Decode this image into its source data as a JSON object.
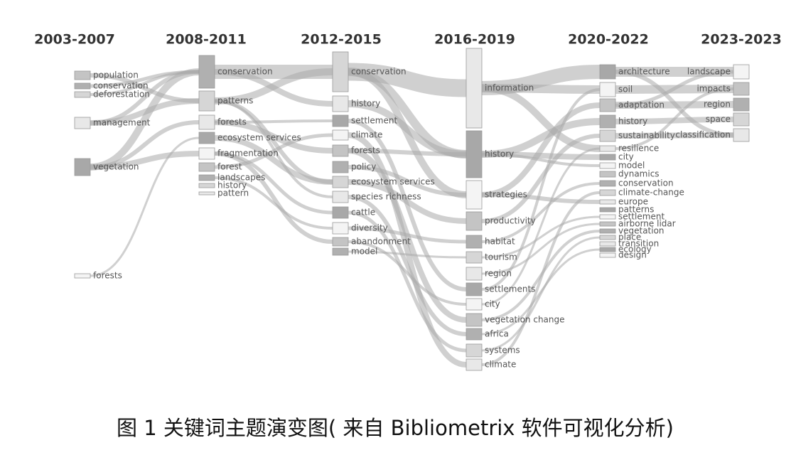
{
  "periods": [
    {
      "label": "2003-2007",
      "nodes": [
        "population",
        "conservation",
        "deforestation",
        "management",
        "vegetation",
        "forests"
      ]
    },
    {
      "label": "2008-2011",
      "nodes": [
        "conservation",
        "patterns",
        "forests",
        "ecosystem services",
        "fragmentation",
        "forest",
        "landscapes",
        "history",
        "pattern"
      ]
    },
    {
      "label": "2012-2015",
      "nodes": [
        "conservation",
        "history",
        "settlement",
        "climate",
        "forests",
        "policy",
        "ecosystem services",
        "species richness",
        "cattle",
        "diversity",
        "abandonment",
        "model"
      ]
    },
    {
      "label": "2016-2019",
      "nodes": [
        "information",
        "history",
        "strategies",
        "productivity",
        "habitat",
        "tourism",
        "region",
        "settlements",
        "city",
        "vegetation change",
        "africa",
        "systems",
        "climate"
      ]
    },
    {
      "label": "2020-2022",
      "nodes": [
        "architecture",
        "soil",
        "adaptation",
        "history",
        "sustainability",
        "resilience",
        "city",
        "model",
        "dynamics",
        "conservation",
        "climate-change",
        "europe",
        "patterns",
        "settlement",
        "airborne lidar",
        "vegetation",
        "place",
        "transition",
        "ecology",
        "design"
      ]
    },
    {
      "label": "2023-2023",
      "nodes": [
        "landscape",
        "impacts",
        "region",
        "space",
        "classification"
      ]
    }
  ],
  "caption": "图 1 关键词主题演变图( 来自 Bibliometrix 软件可视化分析)"
}
